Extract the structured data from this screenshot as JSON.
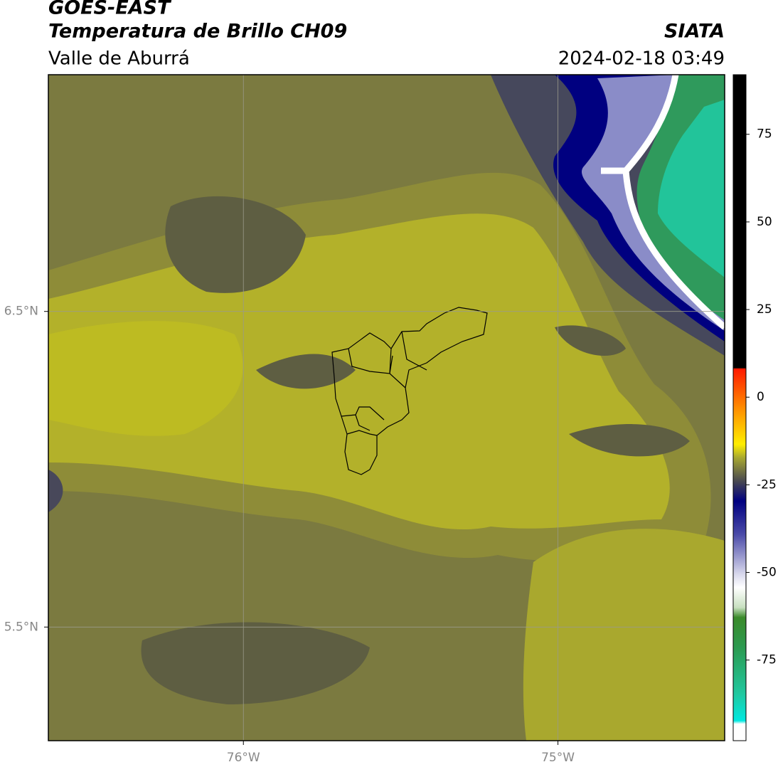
{
  "header": {
    "title": "GOES-EAST",
    "subtitle": "Temperatura de Brillo CH09",
    "region": "Valle de Aburrá",
    "source": "SIATA",
    "datetime": "2024-02-18 03:49"
  },
  "map": {
    "xlim": [
      -76.62,
      -74.47
    ],
    "ylim": [
      5.14,
      7.25
    ],
    "xticks": [
      {
        "value": -76,
        "label": "76°W"
      },
      {
        "value": -75,
        "label": "75°W"
      }
    ],
    "yticks": [
      {
        "value": 6.5,
        "label": "6.5°N"
      },
      {
        "value": 5.5,
        "label": "5.5°N"
      }
    ],
    "grid": true
  },
  "colorbar": {
    "clim": [
      -98,
      92
    ],
    "ticks": [
      75,
      50,
      25,
      0,
      -25,
      -50,
      -75
    ]
  }
}
